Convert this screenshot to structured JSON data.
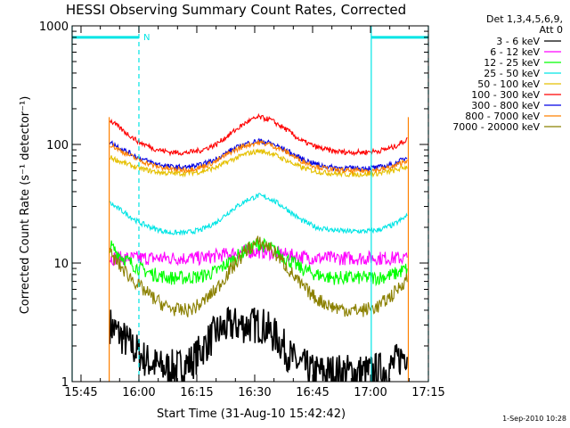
{
  "colors": {
    "background": "#ffffff",
    "axes": "#000000",
    "cyan": "#00e5e5",
    "orange": "#ff8000"
  },
  "chart_data": {
    "type": "line",
    "title": "HESSI Observing Summary Count Rates, Corrected",
    "xlabel": "Start Time (31-Aug-10 15:42:42)",
    "ylabel": "Corrected Count Rate (s⁻¹ detector⁻¹)",
    "y_scale": "log",
    "ylim": [
      1,
      1000
    ],
    "xlim_minutes": [
      42.7,
      135.0
    ],
    "x_tick_labels": [
      {
        "label": "15:45",
        "m": 45
      },
      {
        "label": "16:00",
        "m": 60
      },
      {
        "label": "16:15",
        "m": 75
      },
      {
        "label": "16:30",
        "m": 90
      },
      {
        "label": "16:45",
        "m": 105
      },
      {
        "label": "17:00",
        "m": 120
      },
      {
        "label": "17:15",
        "m": 135
      }
    ],
    "y_tick_labels": [
      {
        "label": "1",
        "v": 1
      },
      {
        "label": "10",
        "v": 10
      },
      {
        "label": "100",
        "v": 100
      },
      {
        "label": "1000",
        "v": 1000
      }
    ],
    "legend_header": [
      "Det 1,3,4,5,6,9,",
      "Att 0"
    ],
    "legend_position": "right",
    "data_start_m": 52.3,
    "data_end_m": 129.8,
    "series": [
      {
        "name": "3 - 6 keV",
        "color": "#000000",
        "x": [
          52.5,
          58,
          62,
          66,
          70,
          74,
          77,
          80,
          84,
          88,
          92,
          96,
          100,
          105,
          110,
          115,
          120,
          125,
          129.5
        ],
        "y": [
          3,
          2,
          1.5,
          1.3,
          1.3,
          1.5,
          2,
          2.6,
          3,
          3,
          3,
          2.3,
          1.5,
          1.2,
          1.2,
          1.2,
          1.2,
          1.3,
          1.8
        ]
      },
      {
        "name": "6 - 12 keV",
        "color": "#ff00ff",
        "x": [
          52.5,
          58,
          64,
          70,
          76,
          80,
          84,
          88,
          92,
          96,
          100,
          106,
          112,
          118,
          124,
          129.5
        ],
        "y": [
          11,
          11,
          11,
          11,
          11,
          11.5,
          12,
          12.5,
          12.5,
          12,
          11.5,
          11,
          11,
          11,
          11,
          11
        ]
      },
      {
        "name": "12 - 25 keV",
        "color": "#00ff00",
        "x": [
          52.5,
          56,
          60,
          64,
          68,
          72,
          76,
          80,
          84,
          88,
          91,
          94,
          98,
          102,
          106,
          110,
          114,
          118,
          122,
          126,
          129.5
        ],
        "y": [
          14,
          11,
          9,
          8,
          7.5,
          7.5,
          7.7,
          8.5,
          10.5,
          13,
          14.5,
          13.5,
          11,
          9,
          8,
          7.5,
          7.5,
          7.5,
          7.5,
          8,
          9
        ]
      },
      {
        "name": "25 - 50 keV",
        "color": "#00e5e5",
        "x": [
          52.5,
          56,
          60,
          64,
          68,
          72,
          76,
          80,
          84,
          88,
          91,
          94,
          98,
          102,
          106,
          110,
          114,
          118,
          122,
          126,
          129.5
        ],
        "y": [
          32,
          27,
          22,
          19.5,
          18,
          18,
          19,
          22,
          28,
          34,
          37,
          35,
          29,
          23,
          20,
          19,
          18.5,
          18.5,
          19,
          21,
          25
        ]
      },
      {
        "name": "50 - 100 keV",
        "color": "#e5c000",
        "x": [
          52.5,
          56,
          60,
          64,
          68,
          72,
          76,
          80,
          84,
          88,
          91,
          94,
          98,
          102,
          106,
          110,
          114,
          118,
          122,
          126,
          129.5
        ],
        "y": [
          78,
          70,
          63,
          59,
          57,
          57,
          59,
          64,
          74,
          84,
          88,
          85,
          74,
          64,
          59,
          57,
          56,
          56,
          57,
          60,
          65
        ]
      },
      {
        "name": "100 - 300 keV",
        "color": "#ff0000",
        "x": [
          52.5,
          56,
          60,
          64,
          68,
          72,
          76,
          80,
          84,
          88,
          91,
          94,
          98,
          102,
          106,
          110,
          114,
          118,
          122,
          126,
          129.5
        ],
        "y": [
          160,
          130,
          105,
          92,
          86,
          85,
          89,
          100,
          125,
          155,
          170,
          162,
          135,
          108,
          95,
          88,
          86,
          86,
          88,
          95,
          110
        ]
      },
      {
        "name": "300 - 800 keV",
        "color": "#0000e5",
        "x": [
          52.5,
          56,
          60,
          64,
          68,
          72,
          76,
          80,
          84,
          88,
          91,
          94,
          98,
          102,
          106,
          110,
          114,
          118,
          122,
          126,
          129.5
        ],
        "y": [
          105,
          90,
          77,
          69,
          65,
          64,
          67,
          75,
          90,
          102,
          107,
          103,
          90,
          76,
          68,
          64,
          63,
          63,
          64,
          68,
          78
        ]
      },
      {
        "name": "800 - 7000 keV",
        "color": "#ff8000",
        "x": [
          52.5,
          56,
          60,
          64,
          68,
          72,
          76,
          80,
          84,
          88,
          91,
          94,
          98,
          102,
          106,
          110,
          114,
          118,
          122,
          126,
          129.5
        ],
        "y": [
          100,
          86,
          74,
          66,
          62,
          61,
          64,
          72,
          87,
          99,
          104,
          100,
          87,
          73,
          65,
          61,
          60,
          60,
          61,
          65,
          74
        ]
      },
      {
        "name": "7000 - 20000 keV",
        "color": "#8b8000",
        "x": [
          52.5,
          55,
          58,
          61,
          64,
          67,
          70,
          73,
          76,
          80,
          84,
          88,
          91,
          94,
          98,
          102,
          106,
          110,
          114,
          118,
          122,
          126,
          129.5
        ],
        "y": [
          12,
          9.5,
          7.5,
          6,
          5,
          4.3,
          4,
          4,
          4.5,
          6,
          9,
          13,
          15,
          13.5,
          9.5,
          6.5,
          5,
          4.3,
          4,
          4,
          4.3,
          5.5,
          7.5
        ]
      }
    ],
    "annotations": [
      {
        "type": "bar",
        "label": "N",
        "color": "#00e5e5",
        "x_start_m": 42.7,
        "x_end_m": 60,
        "y": 800
      },
      {
        "type": "bar",
        "label": "",
        "color": "#00e5e5",
        "x_start_m": 120.2,
        "x_end_m": 135,
        "y": 800
      }
    ],
    "vlines_solid_m": [
      42.7,
      120.2
    ],
    "vlines_dashed_m": [
      60,
      135
    ],
    "timestamp": "1-Sep-2010 10:28"
  }
}
